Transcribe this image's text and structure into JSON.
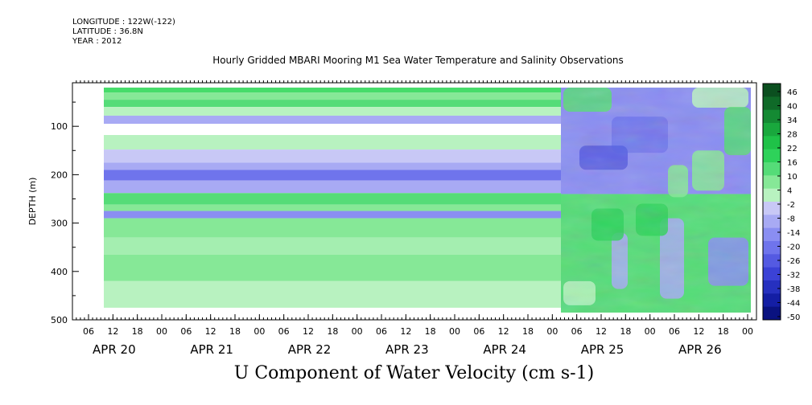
{
  "header": {
    "longitude": "LONGITUDE : 122W(-122)",
    "latitude": "LATITUDE : 36.8N",
    "year": "YEAR : 2012"
  },
  "chart_data": {
    "type": "heatmap",
    "title": "Hourly Gridded MBARI Mooring M1 Sea Water Temperature and Salinity Observations",
    "variable_label": "U Component of Water Velocity (cm s-1)",
    "ylabel": "DEPTH (m)",
    "ylim": [
      500,
      10
    ],
    "y_ticks": [
      100,
      200,
      300,
      400,
      500
    ],
    "x_hour_ticks": [
      "06",
      "12",
      "18",
      "00",
      "06",
      "12",
      "18",
      "00",
      "06",
      "12",
      "18",
      "00",
      "06",
      "12",
      "18",
      "00",
      "06",
      "12",
      "18",
      "00",
      "06",
      "12",
      "18",
      "00",
      "06",
      "12",
      "18",
      "00",
      "06",
      "12",
      "18",
      "00"
    ],
    "x_day_labels": [
      "APR 20",
      "APR 21",
      "APR 22",
      "APR 23",
      "APR 24",
      "APR 25",
      "APR 26"
    ],
    "colorbar_labels": [
      "46",
      "40",
      "34",
      "28",
      "22",
      "16",
      "10",
      "4",
      "-2",
      "-8",
      "-14",
      "-20",
      "-26",
      "-32",
      "-38",
      "-44",
      "-50"
    ],
    "colorbar_colors": [
      "#0b4f1f",
      "#0f6a28",
      "#148a33",
      "#19a83d",
      "#1fc248",
      "#2ed25a",
      "#55dc78",
      "#86e897",
      "#b8f2c0",
      "#c8c8f6",
      "#a8aaf4",
      "#8a8ef2",
      "#6f74ec",
      "#545ae2",
      "#3b42d6",
      "#2630bf",
      "#141ea4",
      "#0a1280"
    ],
    "profile_before_apr25": [
      {
        "depth_top": 20,
        "depth_bottom": 30,
        "color": "#46dc6a"
      },
      {
        "depth_top": 30,
        "depth_bottom": 45,
        "color": "#86e897"
      },
      {
        "depth_top": 45,
        "depth_bottom": 60,
        "color": "#55dc78"
      },
      {
        "depth_top": 60,
        "depth_bottom": 78,
        "color": "#b8f2c0"
      },
      {
        "depth_top": 78,
        "depth_bottom": 95,
        "color": "#a8aaf4"
      },
      {
        "depth_top": 95,
        "depth_bottom": 118,
        "color": "#ffffff"
      },
      {
        "depth_top": 118,
        "depth_bottom": 148,
        "color": "#b8f2c0"
      },
      {
        "depth_top": 148,
        "depth_bottom": 175,
        "color": "#c8c8f6"
      },
      {
        "depth_top": 175,
        "depth_bottom": 190,
        "color": "#a8aaf4"
      },
      {
        "depth_top": 190,
        "depth_bottom": 212,
        "color": "#6f74ec"
      },
      {
        "depth_top": 212,
        "depth_bottom": 238,
        "color": "#a8aaf4"
      },
      {
        "depth_top": 238,
        "depth_bottom": 262,
        "color": "#55dc78"
      },
      {
        "depth_top": 262,
        "depth_bottom": 275,
        "color": "#86e897"
      },
      {
        "depth_top": 275,
        "depth_bottom": 290,
        "color": "#8a8ef2"
      },
      {
        "depth_top": 290,
        "depth_bottom": 330,
        "color": "#86e897"
      },
      {
        "depth_top": 330,
        "depth_bottom": 365,
        "color": "#a4eeb0"
      },
      {
        "depth_top": 365,
        "depth_bottom": 420,
        "color": "#86e897"
      },
      {
        "depth_top": 420,
        "depth_bottom": 475,
        "color": "#b8f2c0"
      }
    ]
  }
}
